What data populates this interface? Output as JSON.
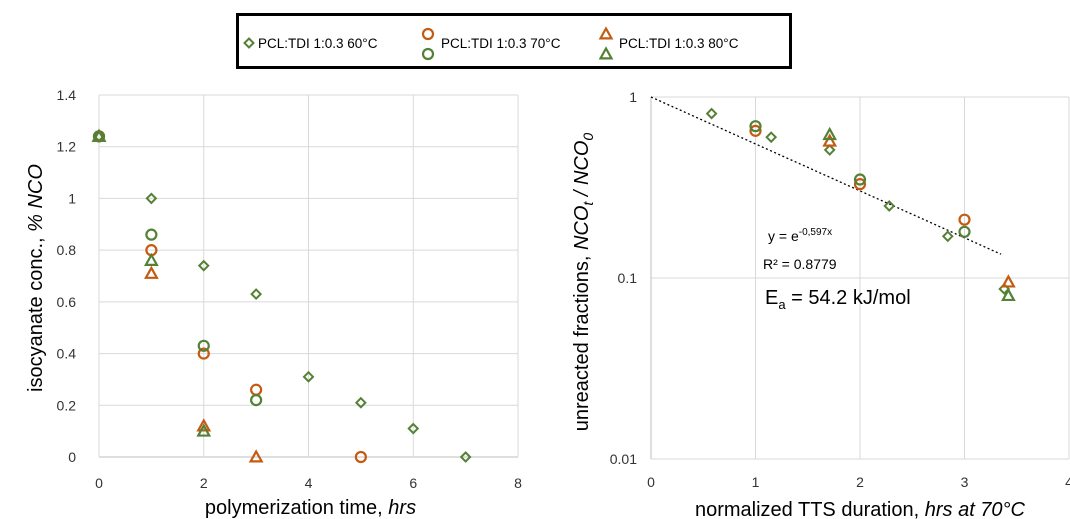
{
  "legend": [
    {
      "label": "PCL:TDI 1:0.3 60°C",
      "marker": "diamond",
      "color": "#538135"
    },
    {
      "label": "PCL:TDI 1:0.3 70°C",
      "marker": "circle",
      "color": "#C55A11",
      "color2": "#538135"
    },
    {
      "label": "PCL:TDI 1:0.3 80°C",
      "marker": "triangle",
      "color": "#C55A11",
      "color2": "#538135"
    }
  ],
  "chart_data": [
    {
      "type": "scatter",
      "xlabel": "polymerization time, hrs",
      "xlabel_plain": "polymerization time, ",
      "xlabel_italic": "hrs",
      "ylabel_plain": "isocyanate conc., ",
      "ylabel_italic": "% NCO",
      "xlim": [
        0,
        8
      ],
      "ylim": [
        0,
        1.4
      ],
      "xticks": [
        "0",
        "2",
        "4",
        "6",
        "8"
      ],
      "xtick_values": [
        0,
        2,
        4,
        6,
        8
      ],
      "yticks": [
        "0",
        "0.2",
        "0.4",
        "0.6",
        "0.8",
        "1",
        "1.2",
        "1.4"
      ],
      "ytick_values": [
        0,
        0.2,
        0.4,
        0.6,
        0.8,
        1.0,
        1.2,
        1.4
      ],
      "grid": true,
      "series": [
        {
          "name": "PCL:TDI 1:0.3 60°C",
          "marker": "diamond",
          "color": "#538135",
          "points": [
            [
              0,
              1.24
            ],
            [
              1,
              1.0
            ],
            [
              2,
              0.74
            ],
            [
              3,
              0.63
            ],
            [
              4,
              0.31
            ],
            [
              5,
              0.21
            ],
            [
              6,
              0.11
            ],
            [
              7,
              0.0
            ]
          ]
        },
        {
          "name": "PCL:TDI 1:0.3 70°C (orange circle)",
          "marker": "circle",
          "color": "#C55A11",
          "points": [
            [
              0,
              1.24
            ],
            [
              1,
              0.8
            ],
            [
              2,
              0.4
            ],
            [
              3,
              0.26
            ],
            [
              5,
              0.0
            ]
          ]
        },
        {
          "name": "PCL:TDI 1:0.3 70°C (green circle)",
          "marker": "circle",
          "color": "#538135",
          "points": [
            [
              0,
              1.24
            ],
            [
              1,
              0.86
            ],
            [
              2,
              0.43
            ],
            [
              3,
              0.22
            ]
          ]
        },
        {
          "name": "PCL:TDI 1:0.3 80°C (orange triangle)",
          "marker": "triangle",
          "color": "#C55A11",
          "points": [
            [
              0,
              1.24
            ],
            [
              1,
              0.71
            ],
            [
              2,
              0.12
            ],
            [
              3,
              0.0
            ]
          ]
        },
        {
          "name": "PCL:TDI 1:0.3 80°C (green triangle)",
          "marker": "triangle",
          "color": "#538135",
          "points": [
            [
              0,
              1.24
            ],
            [
              1,
              0.76
            ],
            [
              2,
              0.1
            ]
          ]
        }
      ]
    },
    {
      "type": "scatter",
      "yscale": "log",
      "xlabel": "normalized TTS duration, hrs at 70°C",
      "xlabel_plain": "normalized TTS duration, ",
      "xlabel_italic": "hrs at 70°C",
      "ylabel_plain": "unreacted fractions, ",
      "ylabel_italic": "NCO",
      "ylabel_sub1": "t",
      "ylabel_mid": " / NCO",
      "ylabel_sub2": "0",
      "xlim": [
        0,
        4
      ],
      "ylim": [
        0.01,
        1
      ],
      "xticks": [
        "0",
        "1",
        "2",
        "3",
        "4"
      ],
      "xtick_values": [
        0,
        1,
        2,
        3,
        4
      ],
      "yticks": [
        "0.01",
        "0.1",
        "1"
      ],
      "ytick_values": [
        0.01,
        0.1,
        1
      ],
      "grid": true,
      "annotations": {
        "eq_prefix": "y = e",
        "eq_exp": "-0,597x",
        "r2": "R² = 0.8779",
        "ea_prefix": "E",
        "ea_sub": "a",
        "ea_rest": " = 54.2 kJ/mol"
      },
      "trendline": {
        "style": "dotted",
        "color": "#000000",
        "x": [
          0,
          3.35
        ],
        "a": 1.0,
        "b": -0.597
      },
      "series": [
        {
          "name": "PCL:TDI 1:0.3 60°C",
          "marker": "diamond",
          "color": "#538135",
          "points": [
            [
              0.58,
              0.81
            ],
            [
              1.15,
              0.6
            ],
            [
              1.71,
              0.51
            ],
            [
              2.28,
              0.25
            ],
            [
              2.84,
              0.17
            ],
            [
              3.38,
              0.087
            ]
          ]
        },
        {
          "name": "PCL:TDI 1:0.3 70°C (orange circle)",
          "marker": "circle",
          "color": "#C55A11",
          "points": [
            [
              1.0,
              0.65
            ],
            [
              2.0,
              0.33
            ],
            [
              3.0,
              0.21
            ]
          ]
        },
        {
          "name": "PCL:TDI 1:0.3 70°C (green circle)",
          "marker": "circle",
          "color": "#538135",
          "points": [
            [
              1.0,
              0.69
            ],
            [
              2.0,
              0.35
            ],
            [
              3.0,
              0.18
            ]
          ]
        },
        {
          "name": "PCL:TDI 1:0.3 80°C (orange triangle)",
          "marker": "triangle",
          "color": "#C55A11",
          "points": [
            [
              1.71,
              0.57
            ],
            [
              3.42,
              0.095
            ]
          ]
        },
        {
          "name": "PCL:TDI 1:0.3 80°C (green triangle)",
          "marker": "triangle",
          "color": "#538135",
          "points": [
            [
              1.71,
              0.62
            ],
            [
              3.42,
              0.08
            ]
          ]
        }
      ]
    }
  ]
}
